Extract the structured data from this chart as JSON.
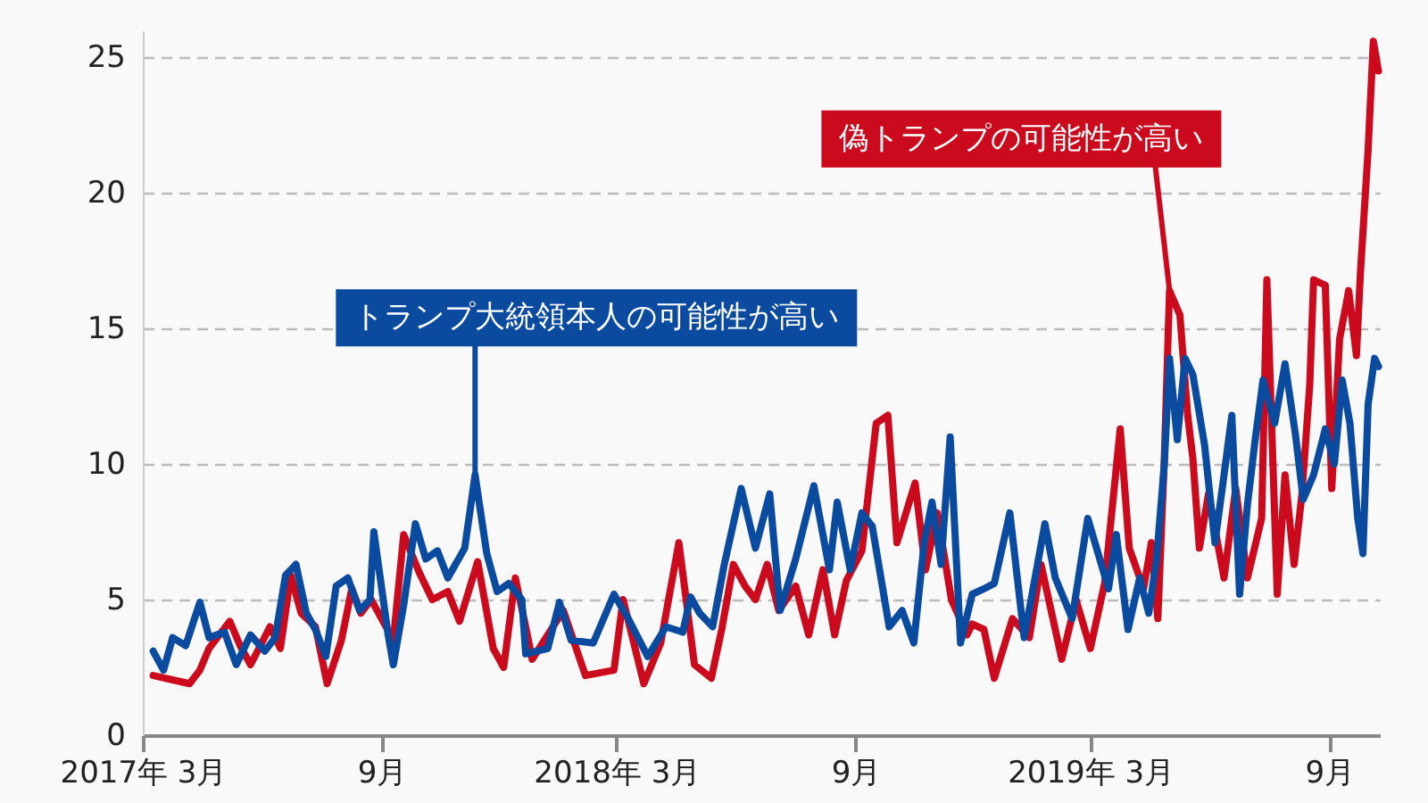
{
  "chart_data": {
    "type": "line",
    "xlim": [
      "2017-03-01",
      "2019-10-10"
    ],
    "ylim": [
      0,
      26
    ],
    "xticks": [
      {
        "value": "2017-03",
        "label": "2017年 3月"
      },
      {
        "value": "2017-09",
        "label": "9月"
      },
      {
        "value": "2018-03",
        "label": "2018年 3月"
      },
      {
        "value": "2018-09",
        "label": "9月"
      },
      {
        "value": "2019-03",
        "label": "2019年 3月"
      },
      {
        "value": "2019-09",
        "label": "9月"
      }
    ],
    "yticks": [
      0,
      5,
      10,
      15,
      20,
      25
    ],
    "grid": "y",
    "annotations": [
      {
        "text": "偽トランプの可能性が高い",
        "x": "2019-05-01",
        "y": 16.4
      },
      {
        "text": "トランプ大統領本人の可能性が高い",
        "x": "2017-11-12",
        "y": 9.6
      }
    ],
    "series": [
      {
        "color": "#cc0a1e",
        "x": [
          "2017-03-09",
          "2017-04-06",
          "2017-04-14",
          "2017-04-21",
          "2017-05-07",
          "2017-05-15",
          "2017-05-23",
          "2017-06-07",
          "2017-06-15",
          "2017-06-23",
          "2017-07-01",
          "2017-07-12",
          "2017-07-21",
          "2017-08-01",
          "2017-08-09",
          "2017-08-16",
          "2017-08-24",
          "2017-09-10",
          "2017-09-18",
          "2017-09-30",
          "2017-10-10",
          "2017-10-22",
          "2017-10-31",
          "2017-11-14",
          "2017-11-26",
          "2017-12-04",
          "2017-12-13",
          "2017-12-21",
          "2017-12-26",
          "2018-01-19",
          "2018-02-05",
          "2018-02-27",
          "2018-03-06",
          "2018-03-22",
          "2018-04-04",
          "2018-04-18",
          "2018-04-30",
          "2018-05-13",
          "2018-05-21",
          "2018-05-30",
          "2018-06-08",
          "2018-06-16",
          "2018-06-25",
          "2018-07-04",
          "2018-07-17",
          "2018-07-27",
          "2018-08-07",
          "2018-08-16",
          "2018-08-25",
          "2018-09-06",
          "2018-09-17",
          "2018-09-26",
          "2018-10-03",
          "2018-10-17",
          "2018-10-25",
          "2018-11-03",
          "2018-11-14",
          "2018-11-26",
          "2018-11-30",
          "2018-12-09",
          "2018-12-17",
          "2018-12-31",
          "2019-01-13",
          "2019-01-22",
          "2019-02-07",
          "2019-02-18",
          "2019-03-01",
          "2019-03-12",
          "2019-03-24",
          "2019-03-31",
          "2019-04-11",
          "2019-04-17",
          "2019-04-22",
          "2019-04-27",
          "2019-05-01",
          "2019-05-09",
          "2019-05-15",
          "2019-05-19",
          "2019-05-24",
          "2019-05-31",
          "2019-06-12",
          "2019-06-21",
          "2019-06-30",
          "2019-07-11",
          "2019-07-15",
          "2019-07-23",
          "2019-07-29",
          "2019-08-05",
          "2019-08-11",
          "2019-08-17",
          "2019-08-20",
          "2019-08-29",
          "2019-09-03",
          "2019-09-09",
          "2019-09-16",
          "2019-09-22",
          "2019-09-25",
          "2019-10-01",
          "2019-10-05",
          "2019-10-09"
        ],
        "values": [
          2.2,
          1.9,
          2.4,
          3.2,
          4.2,
          3.3,
          2.6,
          4.0,
          3.2,
          5.9,
          4.5,
          4.0,
          1.9,
          3.5,
          5.4,
          4.5,
          5.0,
          3.5,
          7.4,
          6.0,
          5.0,
          5.3,
          4.2,
          6.4,
          3.2,
          2.5,
          5.8,
          4.0,
          2.8,
          4.6,
          2.2,
          2.4,
          5.0,
          1.9,
          3.4,
          7.1,
          2.6,
          2.1,
          3.9,
          6.3,
          5.5,
          5.0,
          6.3,
          4.6,
          5.5,
          3.7,
          6.1,
          3.7,
          5.7,
          6.8,
          11.5,
          11.8,
          7.1,
          9.3,
          6.1,
          8.2,
          5.0,
          3.7,
          4.1,
          3.9,
          2.1,
          4.3,
          3.6,
          6.3,
          2.8,
          5.0,
          3.2,
          5.6,
          11.3,
          6.9,
          5.4,
          7.1,
          4.3,
          10.2,
          16.4,
          15.5,
          11.8,
          10.2,
          6.9,
          8.9,
          5.8,
          9.1,
          5.8,
          8.0,
          16.8,
          5.2,
          9.6,
          6.3,
          8.9,
          12.9,
          16.8,
          16.6,
          9.1,
          14.6,
          16.4,
          14.0,
          17.0,
          21.6,
          25.6,
          24.5
        ]
      },
      {
        "color": "#0a4a9f",
        "x": [
          "2017-03-09",
          "2017-03-17",
          "2017-03-24",
          "2017-04-03",
          "2017-04-14",
          "2017-04-21",
          "2017-05-03",
          "2017-05-12",
          "2017-05-23",
          "2017-06-03",
          "2017-06-11",
          "2017-06-19",
          "2017-06-27",
          "2017-07-05",
          "2017-07-12",
          "2017-07-20",
          "2017-07-28",
          "2017-08-06",
          "2017-08-15",
          "2017-08-23",
          "2017-08-26",
          "2017-09-06",
          "2017-09-10",
          "2017-09-18",
          "2017-09-27",
          "2017-10-05",
          "2017-10-14",
          "2017-10-22",
          "2017-11-04",
          "2017-11-12",
          "2017-11-21",
          "2017-11-29",
          "2017-12-08",
          "2017-12-18",
          "2017-12-21",
          "2018-01-07",
          "2018-01-16",
          "2018-01-25",
          "2018-02-11",
          "2018-02-27",
          "2018-03-10",
          "2018-03-25",
          "2018-04-08",
          "2018-04-21",
          "2018-04-27",
          "2018-05-04",
          "2018-05-14",
          "2018-05-23",
          "2018-06-05",
          "2018-06-16",
          "2018-06-27",
          "2018-07-05",
          "2018-07-17",
          "2018-07-31",
          "2018-08-12",
          "2018-08-18",
          "2018-08-28",
          "2018-09-06",
          "2018-09-14",
          "2018-09-27",
          "2018-10-07",
          "2018-10-16",
          "2018-10-24",
          "2018-10-30",
          "2018-11-06",
          "2018-11-13",
          "2018-11-21",
          "2018-11-30",
          "2018-12-09",
          "2018-12-17",
          "2018-12-29",
          "2019-01-09",
          "2019-01-25",
          "2019-02-02",
          "2019-02-15",
          "2019-02-27",
          "2019-03-07",
          "2019-03-15",
          "2019-03-21",
          "2019-03-30",
          "2019-04-08",
          "2019-04-15",
          "2019-04-21",
          "2019-04-27",
          "2019-05-01",
          "2019-05-07",
          "2019-05-13",
          "2019-05-19",
          "2019-05-28",
          "2019-06-05",
          "2019-06-12",
          "2019-06-18",
          "2019-06-24",
          "2019-06-30",
          "2019-07-06",
          "2019-07-12",
          "2019-07-21",
          "2019-07-29",
          "2019-08-06",
          "2019-08-12",
          "2019-08-20",
          "2019-08-29",
          "2019-09-05",
          "2019-09-11",
          "2019-09-17",
          "2019-09-23",
          "2019-09-27",
          "2019-10-01",
          "2019-10-06",
          "2019-10-09"
        ],
        "values": [
          3.1,
          2.4,
          3.6,
          3.3,
          4.9,
          3.6,
          3.8,
          2.6,
          3.7,
          3.1,
          3.6,
          5.9,
          6.3,
          4.5,
          3.9,
          2.9,
          5.5,
          5.8,
          4.6,
          5.0,
          7.5,
          3.7,
          2.6,
          4.8,
          7.8,
          6.5,
          6.8,
          5.8,
          6.9,
          9.6,
          6.7,
          5.3,
          5.6,
          5.0,
          3.0,
          3.2,
          4.9,
          3.5,
          3.4,
          5.2,
          4.3,
          2.9,
          4.0,
          3.8,
          5.1,
          4.5,
          4.0,
          6.3,
          9.1,
          6.9,
          8.9,
          4.6,
          6.5,
          9.2,
          6.1,
          8.6,
          6.1,
          8.2,
          7.7,
          4.0,
          4.6,
          3.4,
          7.1,
          8.6,
          6.3,
          11.0,
          3.4,
          5.2,
          5.4,
          5.6,
          8.2,
          3.6,
          7.8,
          5.8,
          4.3,
          8.0,
          6.7,
          5.4,
          7.4,
          3.9,
          5.8,
          4.5,
          6.5,
          10.0,
          13.9,
          10.9,
          13.9,
          13.3,
          10.7,
          7.1,
          9.6,
          11.8,
          5.2,
          8.5,
          10.9,
          13.1,
          11.5,
          13.7,
          11.1,
          8.7,
          9.6,
          11.3,
          10.0,
          13.1,
          11.5,
          8.0,
          6.7,
          12.2,
          13.9,
          13.6
        ]
      }
    ]
  }
}
